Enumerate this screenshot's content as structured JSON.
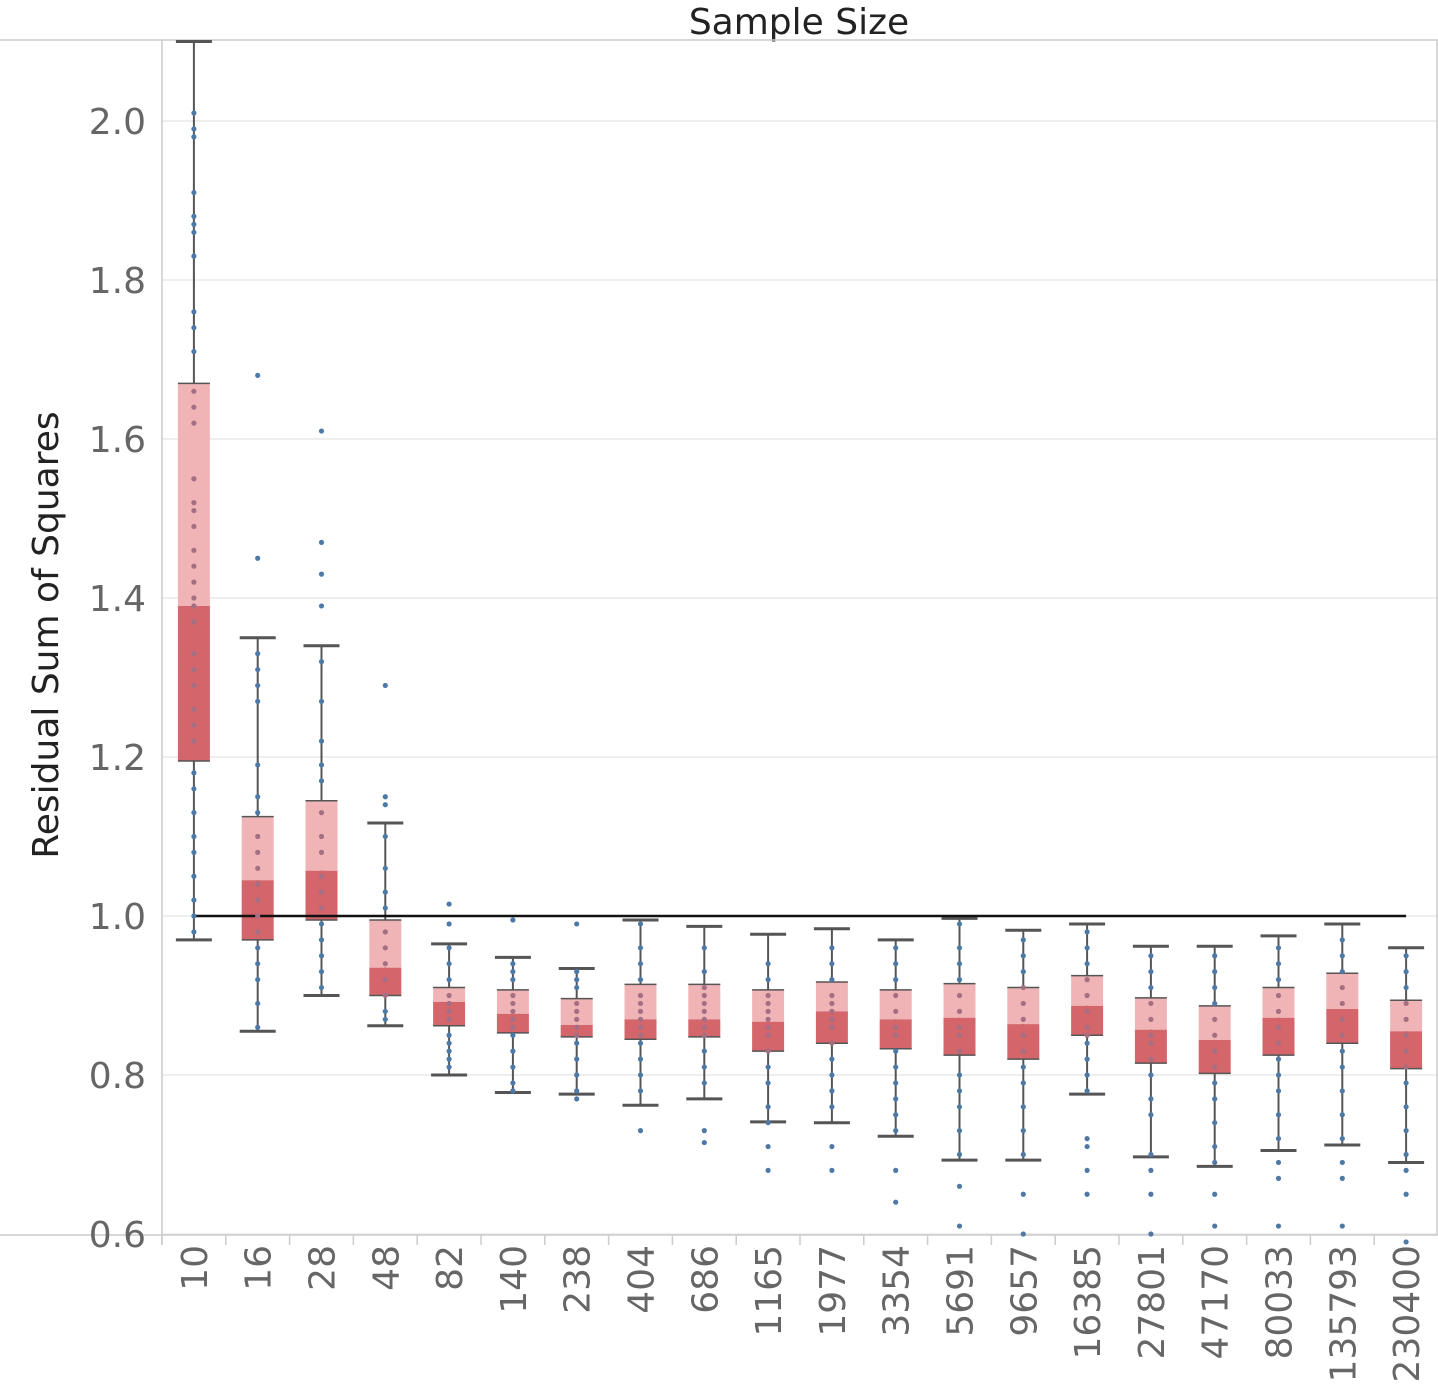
{
  "chart_data": {
    "type": "box",
    "title": "Sample Size",
    "xlabel": "",
    "ylabel": "Residual Sum of Squares",
    "ylim": [
      0.57,
      2.1
    ],
    "yticks": [
      0.6,
      0.8,
      1.0,
      1.2,
      1.4,
      1.6,
      1.8,
      2.0
    ],
    "ytick_labels": [
      "0.6",
      "0.8",
      "1.0",
      "1.2",
      "1.4",
      "1.6",
      "1.8",
      "2.0"
    ],
    "grid": true,
    "reference_line": 1.0,
    "categories": [
      "10",
      "16",
      "28",
      "48",
      "82",
      "140",
      "238",
      "404",
      "686",
      "1165",
      "1977",
      "3354",
      "5691",
      "9657",
      "16385",
      "27801",
      "47170",
      "80033",
      "135793",
      "230400"
    ],
    "boxes": [
      {
        "whisker_low": 0.97,
        "q1": 1.195,
        "median": 1.39,
        "q3": 1.67,
        "whisker_high": 2.1
      },
      {
        "whisker_low": 0.855,
        "q1": 0.97,
        "median": 1.045,
        "q3": 1.125,
        "whisker_high": 1.35
      },
      {
        "whisker_low": 0.9,
        "q1": 0.995,
        "median": 1.057,
        "q3": 1.145,
        "whisker_high": 1.34
      },
      {
        "whisker_low": 0.862,
        "q1": 0.9,
        "median": 0.935,
        "q3": 0.995,
        "whisker_high": 1.117
      },
      {
        "whisker_low": 0.8,
        "q1": 0.862,
        "median": 0.892,
        "q3": 0.91,
        "whisker_high": 0.965
      },
      {
        "whisker_low": 0.778,
        "q1": 0.853,
        "median": 0.877,
        "q3": 0.907,
        "whisker_high": 0.948
      },
      {
        "whisker_low": 0.776,
        "q1": 0.848,
        "median": 0.863,
        "q3": 0.896,
        "whisker_high": 0.934
      },
      {
        "whisker_low": 0.762,
        "q1": 0.845,
        "median": 0.87,
        "q3": 0.914,
        "whisker_high": 0.995
      },
      {
        "whisker_low": 0.77,
        "q1": 0.848,
        "median": 0.87,
        "q3": 0.914,
        "whisker_high": 0.987
      },
      {
        "whisker_low": 0.741,
        "q1": 0.83,
        "median": 0.867,
        "q3": 0.907,
        "whisker_high": 0.977
      },
      {
        "whisker_low": 0.74,
        "q1": 0.84,
        "median": 0.88,
        "q3": 0.917,
        "whisker_high": 0.984
      },
      {
        "whisker_low": 0.723,
        "q1": 0.833,
        "median": 0.87,
        "q3": 0.907,
        "whisker_high": 0.97
      },
      {
        "whisker_low": 0.693,
        "q1": 0.825,
        "median": 0.872,
        "q3": 0.915,
        "whisker_high": 0.997
      },
      {
        "whisker_low": 0.693,
        "q1": 0.82,
        "median": 0.864,
        "q3": 0.91,
        "whisker_high": 0.982
      },
      {
        "whisker_low": 0.776,
        "q1": 0.85,
        "median": 0.887,
        "q3": 0.925,
        "whisker_high": 0.99
      },
      {
        "whisker_low": 0.697,
        "q1": 0.815,
        "median": 0.857,
        "q3": 0.897,
        "whisker_high": 0.962
      },
      {
        "whisker_low": 0.685,
        "q1": 0.802,
        "median": 0.844,
        "q3": 0.887,
        "whisker_high": 0.962
      },
      {
        "whisker_low": 0.705,
        "q1": 0.825,
        "median": 0.872,
        "q3": 0.91,
        "whisker_high": 0.975
      },
      {
        "whisker_low": 0.712,
        "q1": 0.84,
        "median": 0.883,
        "q3": 0.928,
        "whisker_high": 0.99
      },
      {
        "whisker_low": 0.69,
        "q1": 0.808,
        "median": 0.855,
        "q3": 0.894,
        "whisker_high": 0.96
      }
    ],
    "points": [
      [
        2.01,
        1.99,
        1.98,
        1.91,
        1.88,
        1.87,
        1.86,
        1.83,
        1.76,
        1.74,
        1.71,
        1.66,
        1.64,
        1.62,
        1.55,
        1.52,
        1.51,
        1.49,
        1.46,
        1.44,
        1.42,
        1.4,
        1.39,
        1.37,
        1.33,
        1.31,
        1.29,
        1.26,
        1.24,
        1.22,
        1.18,
        1.16,
        1.13,
        1.1,
        1.08,
        1.05,
        1.02,
        1.0,
        0.98
      ],
      [
        1.68,
        1.45,
        1.33,
        1.31,
        1.29,
        1.27,
        1.19,
        1.15,
        1.13,
        1.1,
        1.08,
        1.06,
        1.04,
        1.02,
        1.0,
        0.98,
        0.96,
        0.94,
        0.92,
        0.89,
        0.86
      ],
      [
        1.61,
        1.47,
        1.43,
        1.39,
        1.32,
        1.27,
        1.22,
        1.19,
        1.17,
        1.13,
        1.1,
        1.08,
        1.05,
        1.03,
        1.01,
        0.99,
        0.97,
        0.95,
        0.93,
        0.91
      ],
      [
        1.29,
        1.15,
        1.14,
        1.1,
        1.06,
        1.03,
        1.01,
        0.98,
        0.96,
        0.94,
        0.92,
        0.9,
        0.88,
        0.87
      ],
      [
        1.015,
        0.99,
        0.96,
        0.94,
        0.92,
        0.9,
        0.89,
        0.88,
        0.87,
        0.85,
        0.84,
        0.83,
        0.82,
        0.81
      ],
      [
        0.995,
        0.94,
        0.93,
        0.92,
        0.9,
        0.89,
        0.88,
        0.87,
        0.86,
        0.85,
        0.83,
        0.81,
        0.79,
        0.78
      ],
      [
        0.99,
        0.93,
        0.92,
        0.91,
        0.89,
        0.88,
        0.87,
        0.86,
        0.85,
        0.84,
        0.82,
        0.8,
        0.78,
        0.77
      ],
      [
        0.99,
        0.96,
        0.94,
        0.92,
        0.9,
        0.89,
        0.88,
        0.87,
        0.86,
        0.85,
        0.84,
        0.82,
        0.8,
        0.78,
        0.73
      ],
      [
        0.96,
        0.93,
        0.91,
        0.9,
        0.89,
        0.88,
        0.87,
        0.86,
        0.85,
        0.83,
        0.81,
        0.79,
        0.73,
        0.715
      ],
      [
        0.94,
        0.92,
        0.9,
        0.89,
        0.88,
        0.87,
        0.86,
        0.85,
        0.83,
        0.81,
        0.79,
        0.76,
        0.74,
        0.71,
        0.68
      ],
      [
        0.96,
        0.94,
        0.92,
        0.9,
        0.89,
        0.88,
        0.87,
        0.86,
        0.84,
        0.82,
        0.8,
        0.78,
        0.76,
        0.71,
        0.68
      ],
      [
        0.96,
        0.94,
        0.92,
        0.9,
        0.88,
        0.86,
        0.85,
        0.83,
        0.81,
        0.79,
        0.77,
        0.75,
        0.73,
        0.68,
        0.64
      ],
      [
        0.99,
        0.96,
        0.94,
        0.92,
        0.9,
        0.88,
        0.86,
        0.85,
        0.83,
        0.8,
        0.78,
        0.76,
        0.73,
        0.7,
        0.66,
        0.61
      ],
      [
        0.97,
        0.95,
        0.93,
        0.91,
        0.89,
        0.87,
        0.85,
        0.83,
        0.81,
        0.79,
        0.76,
        0.73,
        0.7,
        0.65,
        0.6
      ],
      [
        0.98,
        0.96,
        0.94,
        0.92,
        0.9,
        0.88,
        0.86,
        0.85,
        0.84,
        0.82,
        0.8,
        0.78,
        0.72,
        0.71,
        0.68,
        0.65
      ],
      [
        0.95,
        0.93,
        0.91,
        0.89,
        0.87,
        0.85,
        0.84,
        0.82,
        0.8,
        0.77,
        0.75,
        0.7,
        0.68,
        0.65,
        0.6
      ],
      [
        0.95,
        0.93,
        0.91,
        0.89,
        0.87,
        0.85,
        0.83,
        0.81,
        0.79,
        0.77,
        0.74,
        0.71,
        0.69,
        0.65,
        0.61
      ],
      [
        0.96,
        0.94,
        0.92,
        0.9,
        0.88,
        0.86,
        0.84,
        0.82,
        0.8,
        0.78,
        0.75,
        0.72,
        0.69,
        0.67,
        0.61
      ],
      [
        0.97,
        0.95,
        0.93,
        0.91,
        0.89,
        0.87,
        0.85,
        0.83,
        0.81,
        0.78,
        0.75,
        0.72,
        0.69,
        0.67,
        0.61
      ],
      [
        0.95,
        0.93,
        0.91,
        0.89,
        0.87,
        0.85,
        0.83,
        0.81,
        0.79,
        0.76,
        0.73,
        0.7,
        0.68,
        0.65,
        0.59
      ]
    ]
  },
  "colors": {
    "box_upper": "#f0b4b6",
    "box_lower": "#d4666b",
    "whisker": "#555555",
    "point": "#4e79a7",
    "point_on_box": "#a46f82",
    "reference": "#111111",
    "grid": "#e8e8e8",
    "axis": "#cccccc"
  }
}
